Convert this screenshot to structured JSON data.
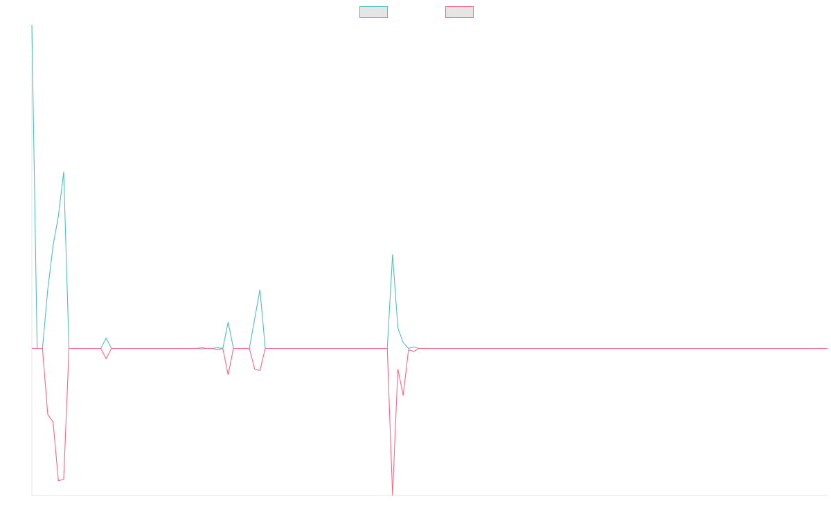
{
  "chart_data": {
    "type": "line",
    "title": "",
    "xlabel": "",
    "ylabel": "",
    "legend_position": "top-center",
    "grid": false,
    "x_count": 151,
    "ylim": [
      -1,
      2.2
    ],
    "series": [
      {
        "color": "#4bc0c0",
        "fill": "#e5e5e5",
        "points": [
          [
            0,
            2.2
          ],
          [
            1,
            0
          ],
          [
            2,
            0
          ],
          [
            3,
            0.4
          ],
          [
            4,
            0.7
          ],
          [
            5,
            0.9
          ],
          [
            6,
            1.2
          ],
          [
            7,
            0
          ],
          [
            8,
            0
          ],
          [
            9,
            0
          ],
          [
            10,
            0
          ],
          [
            11,
            0
          ],
          [
            12,
            0
          ],
          [
            13,
            0
          ],
          [
            14,
            0.07
          ],
          [
            15,
            0
          ],
          [
            16,
            0
          ],
          [
            31,
            0
          ],
          [
            32,
            0.005
          ],
          [
            33,
            0
          ],
          [
            34,
            0
          ],
          [
            35,
            0.005
          ],
          [
            36,
            0
          ],
          [
            37,
            0.18
          ],
          [
            38,
            0
          ],
          [
            39,
            0
          ],
          [
            40,
            0
          ],
          [
            41,
            0
          ],
          [
            42,
            0.2
          ],
          [
            43,
            0.4
          ],
          [
            44,
            0
          ],
          [
            45,
            0
          ],
          [
            66,
            0
          ],
          [
            67,
            0
          ],
          [
            68,
            0.64
          ],
          [
            69,
            0.14
          ],
          [
            70,
            0.04
          ],
          [
            71,
            0
          ],
          [
            72,
            0.01
          ],
          [
            73,
            0
          ],
          [
            150,
            0
          ]
        ]
      },
      {
        "color": "#ff6384",
        "fill": "#e5e5e5",
        "points": [
          [
            0,
            0
          ],
          [
            1,
            0
          ],
          [
            2,
            0
          ],
          [
            3,
            -0.45
          ],
          [
            4,
            -0.5
          ],
          [
            5,
            -0.9
          ],
          [
            6,
            -0.89
          ],
          [
            7,
            0
          ],
          [
            8,
            0
          ],
          [
            9,
            0
          ],
          [
            10,
            0
          ],
          [
            11,
            0
          ],
          [
            12,
            0
          ],
          [
            13,
            0
          ],
          [
            14,
            -0.07
          ],
          [
            15,
            0
          ],
          [
            16,
            0
          ],
          [
            31,
            0
          ],
          [
            32,
            -0.004
          ],
          [
            33,
            0
          ],
          [
            34,
            0
          ],
          [
            35,
            -0.01
          ],
          [
            36,
            0
          ],
          [
            37,
            -0.18
          ],
          [
            38,
            0
          ],
          [
            39,
            0
          ],
          [
            40,
            0
          ],
          [
            41,
            0
          ],
          [
            42,
            -0.14
          ],
          [
            43,
            -0.15
          ],
          [
            44,
            0
          ],
          [
            45,
            0
          ],
          [
            66,
            0
          ],
          [
            67,
            0
          ],
          [
            68,
            -1.0
          ],
          [
            69,
            -0.14
          ],
          [
            70,
            -0.32
          ],
          [
            71,
            -0.01
          ],
          [
            72,
            -0.02
          ],
          [
            73,
            0
          ],
          [
            150,
            0
          ]
        ]
      }
    ]
  }
}
